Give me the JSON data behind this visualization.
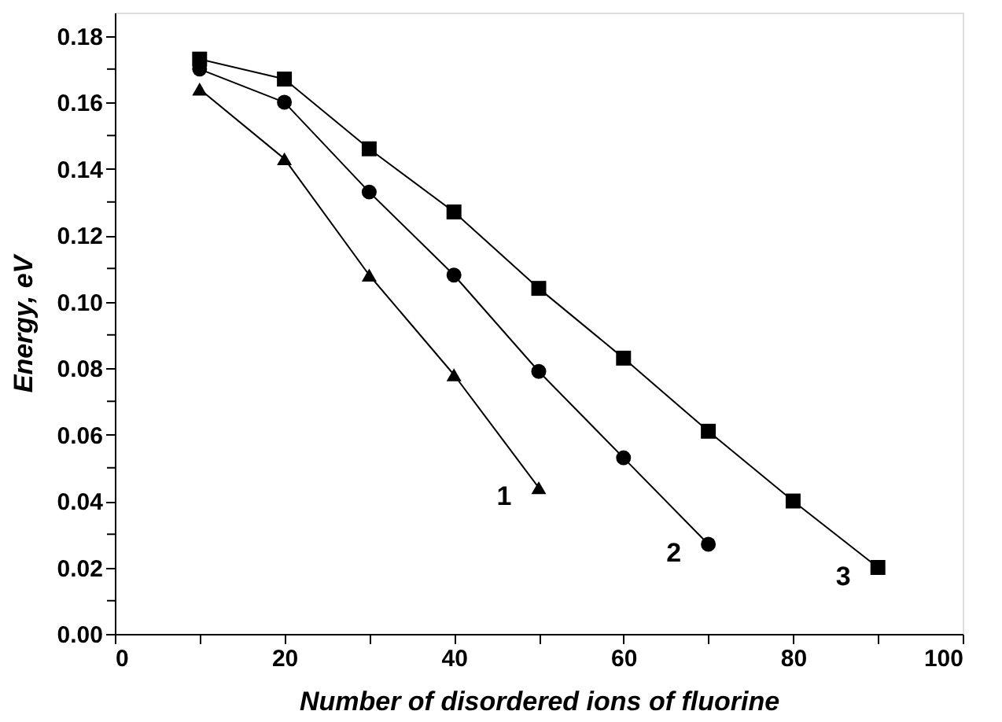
{
  "chart_data": {
    "type": "line",
    "xlabel": "Number of disordered ions of fluorine",
    "ylabel": "Energy, eV",
    "xlim": [
      0,
      100
    ],
    "ylim": [
      0,
      0.187
    ],
    "xticks": [
      0,
      {
        "value": 10,
        "label": null
      },
      20,
      {
        "value": 30,
        "label": null
      },
      40,
      {
        "value": 50,
        "label": null
      },
      60,
      {
        "value": 70,
        "label": null
      },
      80,
      {
        "value": 90,
        "label": null
      },
      100
    ],
    "yticks": [
      {
        "value": 0,
        "label": "0.00"
      },
      {
        "value": 0.01,
        "label": null
      },
      {
        "value": 0.02,
        "label": "0.02"
      },
      {
        "value": 0.03,
        "label": null
      },
      {
        "value": 0.04,
        "label": "0.04"
      },
      {
        "value": 0.05,
        "label": null
      },
      {
        "value": 0.06,
        "label": "0.06"
      },
      {
        "value": 0.07,
        "label": null
      },
      {
        "value": 0.08,
        "label": "0.08"
      },
      {
        "value": 0.09,
        "label": null
      },
      {
        "value": 0.1,
        "label": "0.10"
      },
      {
        "value": 0.11,
        "label": null
      },
      {
        "value": 0.12,
        "label": "0.12"
      },
      {
        "value": 0.13,
        "label": null
      },
      {
        "value": 0.14,
        "label": "0.14"
      },
      {
        "value": 0.15,
        "label": null
      },
      {
        "value": 0.16,
        "label": "0.16"
      },
      {
        "value": 0.17,
        "label": null
      },
      {
        "value": 0.18,
        "label": "0.18"
      }
    ],
    "grid": false,
    "legend": false,
    "line_style": "solid",
    "series": [
      {
        "name": "1",
        "color": "#000000",
        "marker": "triangle",
        "x": [
          10,
          20,
          30,
          40,
          50
        ],
        "values": [
          0.164,
          0.143,
          0.108,
          0.078,
          0.044
        ]
      },
      {
        "name": "2",
        "color": "#000000",
        "marker": "circle",
        "x": [
          10,
          20,
          30,
          40,
          50,
          60,
          70
        ],
        "values": [
          0.17,
          0.16,
          0.133,
          0.108,
          0.079,
          0.053,
          0.027
        ]
      },
      {
        "name": "3",
        "color": "#000000",
        "marker": "square",
        "x": [
          10,
          20,
          30,
          40,
          50,
          60,
          70,
          80,
          90
        ],
        "values": [
          0.173,
          0.167,
          0.146,
          0.127,
          0.104,
          0.083,
          0.061,
          0.04,
          0.02
        ]
      }
    ]
  }
}
